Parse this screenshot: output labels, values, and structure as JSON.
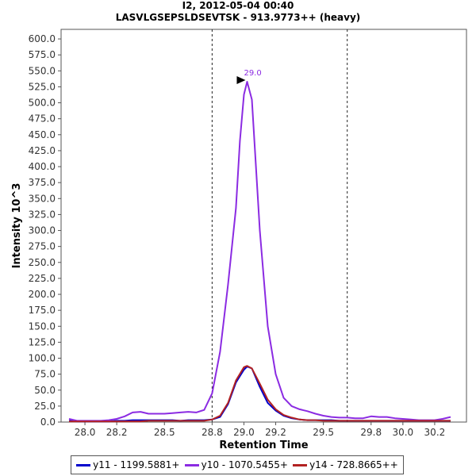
{
  "title": "I2, 2012-05-04 00:40",
  "subtitle": "LASVLGSEPSLDSEVTSK - 913.9773++ (heavy)",
  "chart_data": {
    "type": "line",
    "xlabel": "Retention Time",
    "ylabel": "Intensity 10^3",
    "xlim": [
      27.85,
      30.4
    ],
    "ylim": [
      0,
      615
    ],
    "x_ticks": [
      "28.0",
      "28.2",
      "28.5",
      "28.8",
      "29.0",
      "29.2",
      "29.5",
      "29.8",
      "30.0",
      "30.2"
    ],
    "x_tick_values": [
      28.0,
      28.2,
      28.5,
      28.8,
      29.0,
      29.2,
      29.5,
      29.8,
      30.0,
      30.2
    ],
    "y_ticks": [
      "0.0",
      "25.0",
      "50.0",
      "75.0",
      "100.0",
      "125.0",
      "150.0",
      "175.0",
      "200.0",
      "225.0",
      "250.0",
      "275.0",
      "300.0",
      "325.0",
      "350.0",
      "375.0",
      "400.0",
      "425.0",
      "450.0",
      "475.0",
      "500.0",
      "525.0",
      "550.0",
      "575.0",
      "600.0"
    ],
    "y_tick_values": [
      0,
      25,
      50,
      75,
      100,
      125,
      150,
      175,
      200,
      225,
      250,
      275,
      300,
      325,
      350,
      375,
      400,
      425,
      450,
      475,
      500,
      525,
      550,
      575,
      600
    ],
    "grid": false,
    "integration_boundaries": [
      28.8,
      29.65
    ],
    "peak_annotation": {
      "label": "29.0",
      "x": 29.02,
      "y": 533,
      "color": "#8b2be2"
    },
    "legend_position": "bottom",
    "series": [
      {
        "name": "y11 - 1199.5881+",
        "color": "#0000cc",
        "x": [
          27.9,
          27.95,
          28.0,
          28.05,
          28.1,
          28.15,
          28.2,
          28.25,
          28.3,
          28.35,
          28.4,
          28.45,
          28.5,
          28.55,
          28.6,
          28.65,
          28.7,
          28.75,
          28.8,
          28.85,
          28.9,
          28.95,
          29.0,
          29.02,
          29.05,
          29.1,
          29.15,
          29.2,
          29.25,
          29.3,
          29.35,
          29.4,
          29.45,
          29.5,
          29.55,
          29.6,
          29.65,
          29.7,
          29.75,
          29.8,
          29.85,
          29.9,
          29.95,
          30.0,
          30.05,
          30.1,
          30.15,
          30.2,
          30.25,
          30.3
        ],
        "values": [
          2,
          1,
          1,
          1,
          1,
          1,
          2,
          2,
          3,
          3,
          3,
          3,
          3,
          3,
          2,
          3,
          3,
          3,
          4,
          8,
          28,
          62,
          82,
          87,
          84,
          55,
          30,
          18,
          10,
          6,
          4,
          3,
          3,
          3,
          3,
          2,
          2,
          2,
          2,
          2,
          2,
          2,
          2,
          2,
          2,
          2,
          2,
          2,
          2,
          2
        ]
      },
      {
        "name": "y10 - 1070.5455+",
        "color": "#8b2be2",
        "x": [
          27.9,
          27.95,
          28.0,
          28.05,
          28.1,
          28.15,
          28.2,
          28.25,
          28.3,
          28.35,
          28.4,
          28.45,
          28.5,
          28.55,
          28.6,
          28.65,
          28.7,
          28.75,
          28.8,
          28.85,
          28.9,
          28.95,
          28.975,
          29.0,
          29.02,
          29.05,
          29.1,
          29.15,
          29.2,
          29.25,
          29.3,
          29.35,
          29.4,
          29.45,
          29.5,
          29.55,
          29.6,
          29.65,
          29.7,
          29.75,
          29.8,
          29.85,
          29.9,
          29.95,
          30.0,
          30.05,
          30.1,
          30.15,
          30.2,
          30.25,
          30.3
        ],
        "values": [
          5,
          2,
          2,
          2,
          2,
          3,
          5,
          9,
          15,
          16,
          13,
          13,
          13,
          14,
          15,
          16,
          15,
          19,
          45,
          110,
          215,
          335,
          440,
          513,
          533,
          505,
          300,
          150,
          75,
          38,
          25,
          20,
          17,
          13,
          10,
          8,
          7,
          7,
          6,
          6,
          9,
          8,
          8,
          6,
          5,
          4,
          3,
          3,
          3,
          5,
          8
        ]
      },
      {
        "name": "y14 - 728.8665++",
        "color": "#b22222",
        "x": [
          27.9,
          27.95,
          28.0,
          28.05,
          28.1,
          28.15,
          28.2,
          28.25,
          28.3,
          28.35,
          28.4,
          28.45,
          28.5,
          28.55,
          28.6,
          28.65,
          28.7,
          28.75,
          28.8,
          28.85,
          28.9,
          28.95,
          29.0,
          29.02,
          29.05,
          29.1,
          29.15,
          29.2,
          29.25,
          29.3,
          29.35,
          29.4,
          29.45,
          29.5,
          29.55,
          29.6,
          29.65,
          29.7,
          29.75,
          29.8,
          29.85,
          29.9,
          29.95,
          30.0,
          30.05,
          30.1,
          30.15,
          30.2,
          30.25,
          30.3
        ],
        "values": [
          1,
          1,
          1,
          1,
          1,
          1,
          1,
          1,
          1,
          1,
          2,
          2,
          2,
          2,
          2,
          2,
          2,
          2,
          4,
          10,
          30,
          65,
          86,
          88,
          84,
          60,
          35,
          20,
          11,
          7,
          4,
          3,
          3,
          2,
          2,
          2,
          2,
          2,
          2,
          2,
          2,
          2,
          2,
          2,
          2,
          2,
          2,
          2,
          2,
          2
        ]
      }
    ]
  }
}
